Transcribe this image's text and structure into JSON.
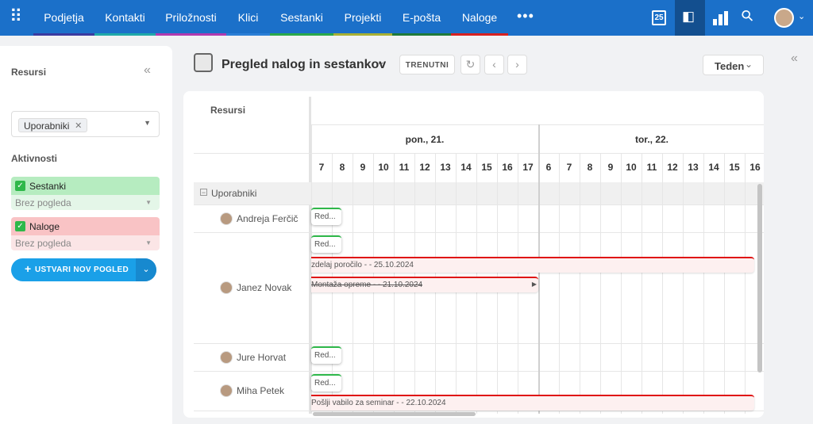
{
  "nav": {
    "items": [
      "Podjetja",
      "Kontakti",
      "Priložnosti",
      "Klici",
      "Sestanki",
      "Projekti",
      "E-pošta",
      "Naloge"
    ],
    "calendar_day": "25"
  },
  "sidebar": {
    "resources_title": "Resursi",
    "resource_tag": "Uporabniki",
    "activities_title": "Aktivnosti",
    "activities": [
      {
        "label": "Sestanki",
        "view": "Brez pogleda"
      },
      {
        "label": "Naloge",
        "view": "Brez pogleda"
      }
    ],
    "create_button": "USTVARI NOV POGLED"
  },
  "header": {
    "title": "Pregled nalog in sestankov",
    "current_button": "TRENUTNI",
    "view_select": "Teden"
  },
  "scheduler": {
    "resources_header": "Resursi",
    "days": [
      {
        "label": "pon., 21.",
        "hours": [
          7,
          8,
          9,
          10,
          11,
          12,
          13,
          14,
          15,
          16,
          17
        ]
      },
      {
        "label": "tor., 22.",
        "hours": [
          6,
          7,
          8,
          9,
          10,
          11,
          12,
          13,
          14,
          15,
          16
        ]
      }
    ],
    "group": "Uporabniki",
    "users": [
      {
        "name": "Andreja Ferčič",
        "meetings": [
          "Red..."
        ],
        "tasks": []
      },
      {
        "name": "Janez Novak",
        "meetings": [
          "Red..."
        ],
        "tasks": [
          "zdelaj poročilo -  - 25.10.2024",
          "Montaža opreme -  - 21.10.2024"
        ]
      },
      {
        "name": "Jure Horvat",
        "meetings": [
          "Red..."
        ],
        "tasks": []
      },
      {
        "name": "Miha Petek",
        "meetings": [
          "Red..."
        ],
        "tasks": [
          "Pošlji vabilo za seminar -  - 22.10.2024"
        ]
      }
    ]
  }
}
